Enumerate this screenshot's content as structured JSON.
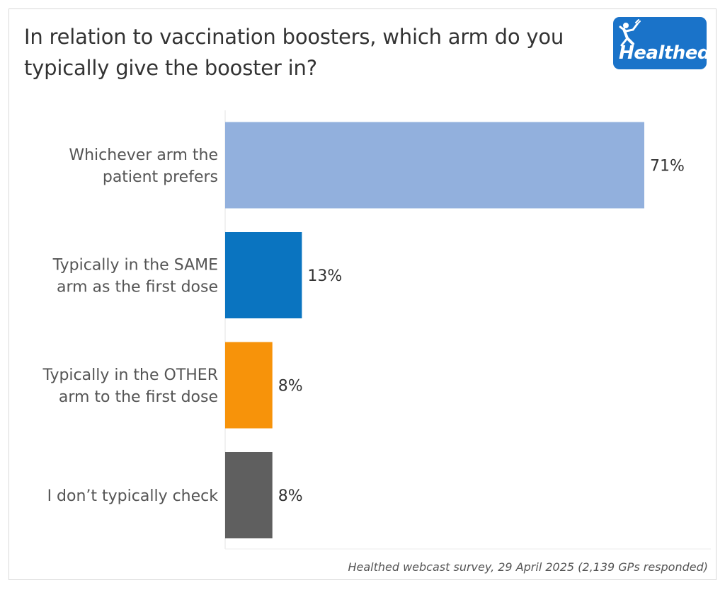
{
  "title": "In relation to vaccination boosters, which arm do you typically give the booster in?",
  "logo": {
    "text": "Healthed",
    "icon": "running-figure-icon",
    "background": "#1a73c9"
  },
  "source": "Healthed webcast survey, 29 April 2025 (2,139 GPs responded)",
  "chart_data": {
    "type": "bar",
    "orientation": "horizontal",
    "title": "In relation to vaccination boosters, which arm do you typically give the booster in?",
    "categories": [
      [
        "Whichever arm the",
        "patient prefers"
      ],
      [
        "Typically in the SAME",
        "arm as the first dose"
      ],
      [
        "Typically in the OTHER",
        "arm to the first dose"
      ],
      [
        "I don’t typically check"
      ]
    ],
    "values": [
      71,
      13,
      8,
      8
    ],
    "value_labels": [
      "71%",
      "13%",
      "8%",
      "8%"
    ],
    "colors": [
      "#92b0dd",
      "#0a74c0",
      "#f7930a",
      "#5f5f5f"
    ],
    "xlim": [
      0,
      100
    ],
    "unit": "%",
    "grid": false,
    "legend": "none"
  }
}
